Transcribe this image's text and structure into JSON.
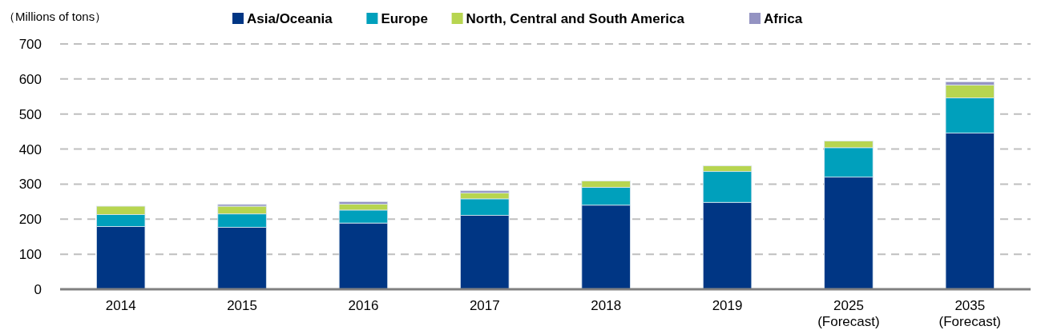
{
  "chart_data": {
    "type": "bar",
    "stacked": true,
    "ylabel": "（Millions of tons）",
    "categories": [
      "2014",
      "2015",
      "2016",
      "2017",
      "2018",
      "2019",
      "2025\n(Forecast)",
      "2035\n(Forecast)"
    ],
    "series": [
      {
        "name": "Asia/Oceania",
        "color": "#003684",
        "values": [
          179,
          177,
          189,
          211,
          240,
          248,
          320,
          446
        ]
      },
      {
        "name": "Europe",
        "color": "#00a0bc",
        "values": [
          34,
          38,
          37,
          47,
          51,
          88,
          84,
          100
        ]
      },
      {
        "name": "North, Central and South America",
        "color": "#b7d550",
        "values": [
          24,
          22,
          17,
          17,
          18,
          16,
          19,
          37
        ]
      },
      {
        "name": "Africa",
        "color": "#9493c2",
        "values": [
          0,
          5,
          7,
          6,
          null,
          0,
          null,
          9
        ]
      }
    ],
    "ylim": [
      0,
      700
    ],
    "yticks": [
      0,
      100,
      200,
      300,
      400,
      500,
      600,
      700
    ],
    "grid": "y",
    "legend": "top"
  }
}
